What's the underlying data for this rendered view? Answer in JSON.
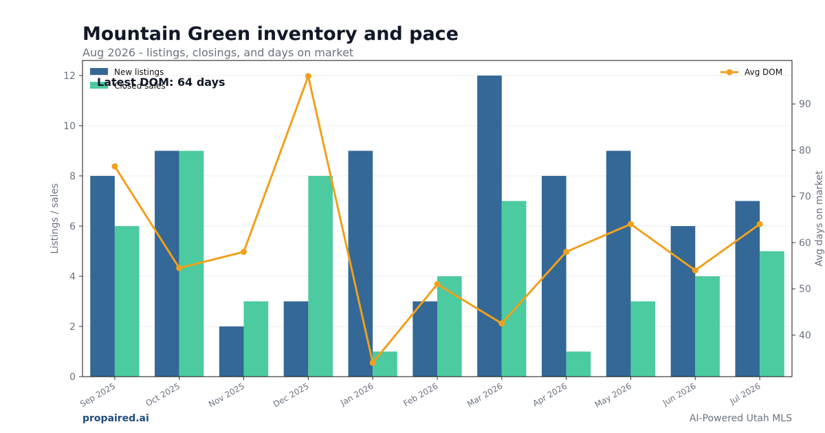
{
  "header": {
    "title": "Mountain Green inventory and pace",
    "subtitle": "Aug 2026 - listings, closings, and days on market"
  },
  "footer": {
    "brand": "propaired.ai",
    "tagline": "AI-Powered Utah MLS"
  },
  "colors": {
    "new_listings": "#336897",
    "closed_sales": "#4bcb9f",
    "avg_dom": "#f0a01c",
    "axis_text": "#6b7280",
    "title": "#111827"
  },
  "chart_data": {
    "type": "bar",
    "title": "Mountain Green inventory and pace",
    "subtitle": "Aug 2026 - listings, closings, and days on market",
    "categories": [
      "Sep 2025",
      "Oct 2025",
      "Nov 2025",
      "Dec 2025",
      "Jan 2026",
      "Feb 2026",
      "Mar 2026",
      "Apr 2026",
      "May 2026",
      "Jun 2026",
      "Jul 2026"
    ],
    "series": [
      {
        "name": "New listings",
        "type": "bar",
        "axis": "left",
        "values": [
          8,
          9,
          2,
          3,
          9,
          3,
          12,
          8,
          9,
          6,
          7
        ]
      },
      {
        "name": "Closed sales",
        "type": "bar",
        "axis": "left",
        "values": [
          6,
          9,
          3,
          8,
          1,
          4,
          7,
          1,
          3,
          4,
          5
        ]
      },
      {
        "name": "Avg DOM",
        "type": "line",
        "axis": "right",
        "values": [
          76.5,
          54.5,
          58,
          96,
          34,
          51,
          42.5,
          58,
          64,
          54,
          64
        ]
      }
    ],
    "ylabel": "Listings / sales",
    "y2label": "Avg days on market",
    "ylim": [
      0,
      12.6
    ],
    "y2lim": [
      31,
      99.4
    ],
    "yticks": [
      0,
      2,
      4,
      6,
      8,
      10,
      12
    ],
    "y2ticks": [
      40,
      50,
      60,
      70,
      80,
      90
    ],
    "annotation": "Latest DOM: 64 days",
    "legend_left": "top-left",
    "legend_right": "top-right",
    "grid": true
  }
}
